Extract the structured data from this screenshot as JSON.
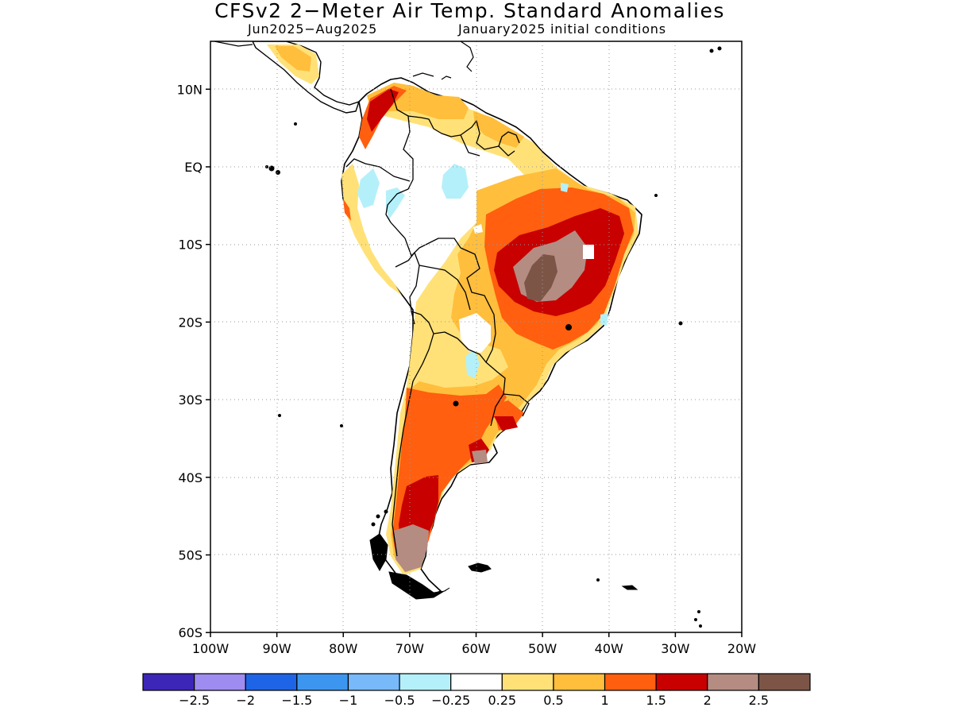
{
  "title": "CFSv2 2−Meter Air Temp. Standard Anomalies",
  "subtitle_period": "Jun2025−Aug2025",
  "subtitle_init": "January2025 initial conditions",
  "lat_ticks": [
    {
      "value": 10,
      "label": "10N"
    },
    {
      "value": 0,
      "label": "EQ"
    },
    {
      "value": -10,
      "label": "10S"
    },
    {
      "value": -20,
      "label": "20S"
    },
    {
      "value": -30,
      "label": "30S"
    },
    {
      "value": -40,
      "label": "40S"
    },
    {
      "value": -50,
      "label": "50S"
    },
    {
      "value": -60,
      "label": "60S"
    }
  ],
  "lon_ticks": [
    {
      "value": -100,
      "label": "100W"
    },
    {
      "value": -90,
      "label": "90W"
    },
    {
      "value": -80,
      "label": "80W"
    },
    {
      "value": -70,
      "label": "70W"
    },
    {
      "value": -60,
      "label": "60W"
    },
    {
      "value": -50,
      "label": "50W"
    },
    {
      "value": -40,
      "label": "40W"
    },
    {
      "value": -30,
      "label": "30W"
    },
    {
      "value": -20,
      "label": "20W"
    }
  ],
  "map_extent": {
    "lon_min": -100,
    "lon_max": -20,
    "lat_min": -60,
    "lat_max": 16
  },
  "colorbar": {
    "colors": [
      "#3c26b8",
      "#9f8cf0",
      "#1e64e6",
      "#3c96f0",
      "#78b9fa",
      "#b4f0fa",
      "#ffffff",
      "#ffe178",
      "#ffbe3c",
      "#ff5f0f",
      "#c80000",
      "#b48c82",
      "#7d5546"
    ],
    "labels": [
      "−2.5",
      "−2",
      "−1.5",
      "−1",
      "−0.5",
      "−0.25",
      "0.25",
      "0.5",
      "1",
      "1.5",
      "2",
      "2.5"
    ]
  },
  "colors": {
    "ocean": "#ffffff",
    "coast": "#000000",
    "grid": "#999999"
  }
}
